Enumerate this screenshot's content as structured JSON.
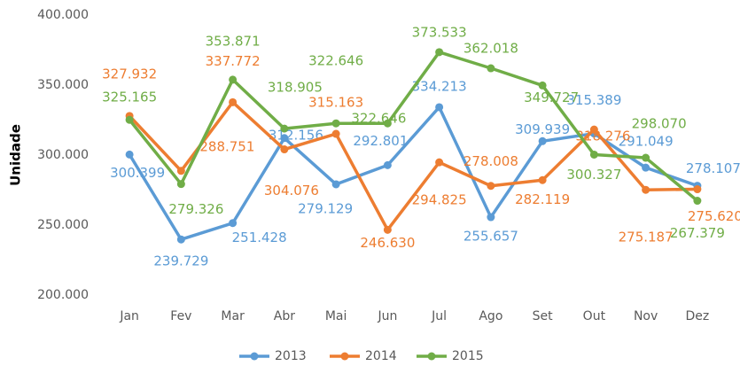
{
  "chart_data": {
    "type": "line",
    "y_label": "Unidade",
    "categories": [
      "Jan",
      "Fev",
      "Mar",
      "Abr",
      "Mai",
      "Jun",
      "Jul",
      "Ago",
      "Set",
      "Out",
      "Nov",
      "Dez"
    ],
    "ylim": [
      200000,
      400000
    ],
    "yticks": [
      {
        "value": 200000,
        "label": "200.000"
      },
      {
        "value": 250000,
        "label": "250.000"
      },
      {
        "value": 300000,
        "label": "300.000"
      },
      {
        "value": 350000,
        "label": "350.000"
      },
      {
        "value": 400000,
        "label": "400.000"
      }
    ],
    "grid": false,
    "legend": "bottom",
    "series": [
      {
        "name": "2013",
        "color": "#5b9bd5",
        "values": [
          300399,
          239729,
          251428,
          312156,
          279129,
          292801,
          334213,
          255657,
          309939,
          315389,
          291049,
          278107
        ],
        "value_labels": [
          "300.399",
          "239.729",
          "251.428",
          "312.156",
          "279.129",
          "292.801",
          "334.213",
          "255.657",
          "309.939",
          "315.389",
          "291.049",
          "278.107"
        ]
      },
      {
        "name": "2014",
        "color": "#ed7d31",
        "values": [
          327932,
          288751,
          337772,
          304076,
          315163,
          246630,
          294825,
          278008,
          282119,
          318276,
          275187,
          275620
        ],
        "value_labels": [
          "327.932",
          "288.751",
          "337.772",
          "304.076",
          "315.163",
          "246.630",
          "294.825",
          "278.008",
          "282.119",
          "318.276",
          "275.187",
          "275.620"
        ]
      },
      {
        "name": "2015",
        "color": "#70ad47",
        "values": [
          325165,
          279326,
          353871,
          318905,
          322646,
          322646,
          373533,
          362018,
          349727,
          300327,
          298070,
          267379
        ],
        "value_labels": [
          "325.165",
          "279.326",
          "353.871",
          "318.905",
          "322.646",
          "322.646",
          "373.533",
          "362.018",
          "349.727",
          "300.327",
          "298.070",
          "267.379"
        ]
      }
    ]
  }
}
